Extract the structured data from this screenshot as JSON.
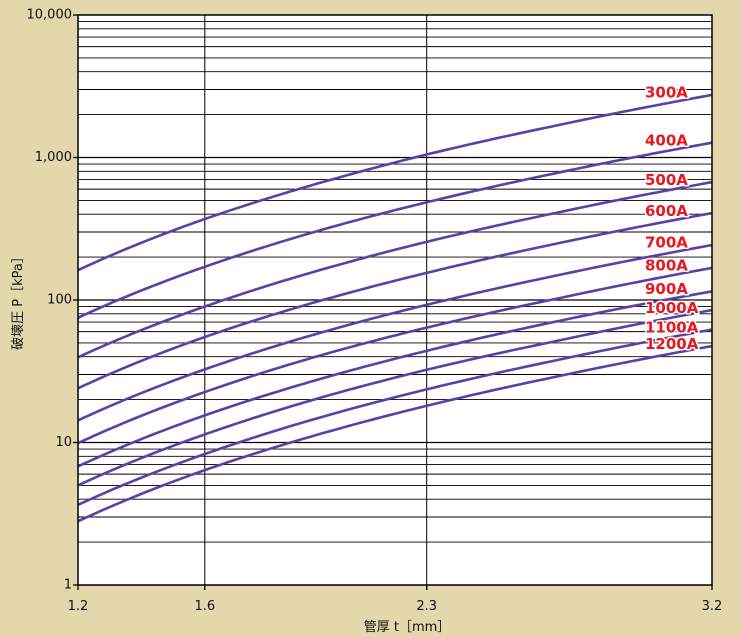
{
  "chart_data": {
    "type": "line",
    "xlabel": "管厚 t［mm］",
    "ylabel": "破壊圧 P［kPa］",
    "xscale": "linear",
    "yscale": "log",
    "xlim": [
      1.2,
      3.2
    ],
    "ylim": [
      1,
      10000
    ],
    "xticks": [
      1.2,
      1.6,
      2.3,
      3.2
    ],
    "xtick_labels": [
      "1.2",
      "1.6",
      "2.3",
      "3.2"
    ],
    "yticks": [
      1,
      10,
      100,
      1000,
      10000
    ],
    "ytick_labels": [
      "1",
      "10",
      "100",
      "1,000",
      "10,000"
    ],
    "grid": true,
    "legend": "inline-right",
    "x": [
      1.2,
      1.6,
      2.0,
      2.3,
      2.7,
      3.2
    ],
    "series": [
      {
        "name": "300A",
        "values": [
          162,
          370,
          700,
          1050,
          1660,
          2750
        ]
      },
      {
        "name": "400A",
        "values": [
          75,
          171,
          325,
          485,
          770,
          1270
        ]
      },
      {
        "name": "500A",
        "values": [
          39.6,
          90,
          171,
          256,
          405,
          672
        ]
      },
      {
        "name": "600A",
        "values": [
          24,
          55,
          104,
          155,
          246,
          407
        ]
      },
      {
        "name": "700A",
        "values": [
          14.3,
          32.6,
          62,
          92.5,
          147,
          243
        ]
      },
      {
        "name": "800A",
        "values": [
          9.9,
          22.6,
          43,
          64,
          101,
          168
        ]
      },
      {
        "name": "900A",
        "values": [
          6.8,
          15.5,
          29.4,
          44,
          70,
          115
        ]
      },
      {
        "name": "1000A",
        "values": [
          5.0,
          11.4,
          21.7,
          32.4,
          51,
          85
        ]
      },
      {
        "name": "1100A",
        "values": [
          3.65,
          8.3,
          15.8,
          23.6,
          37.4,
          62
        ]
      },
      {
        "name": "1200A",
        "values": [
          2.8,
          6.4,
          12.1,
          18.1,
          28.7,
          47.5
        ]
      }
    ]
  },
  "colors": {
    "background": "#e4d7ab",
    "plot_background": "#ffffff",
    "grid": "#000000",
    "curve": "#5a40a8",
    "series_label": "#e8161e"
  }
}
